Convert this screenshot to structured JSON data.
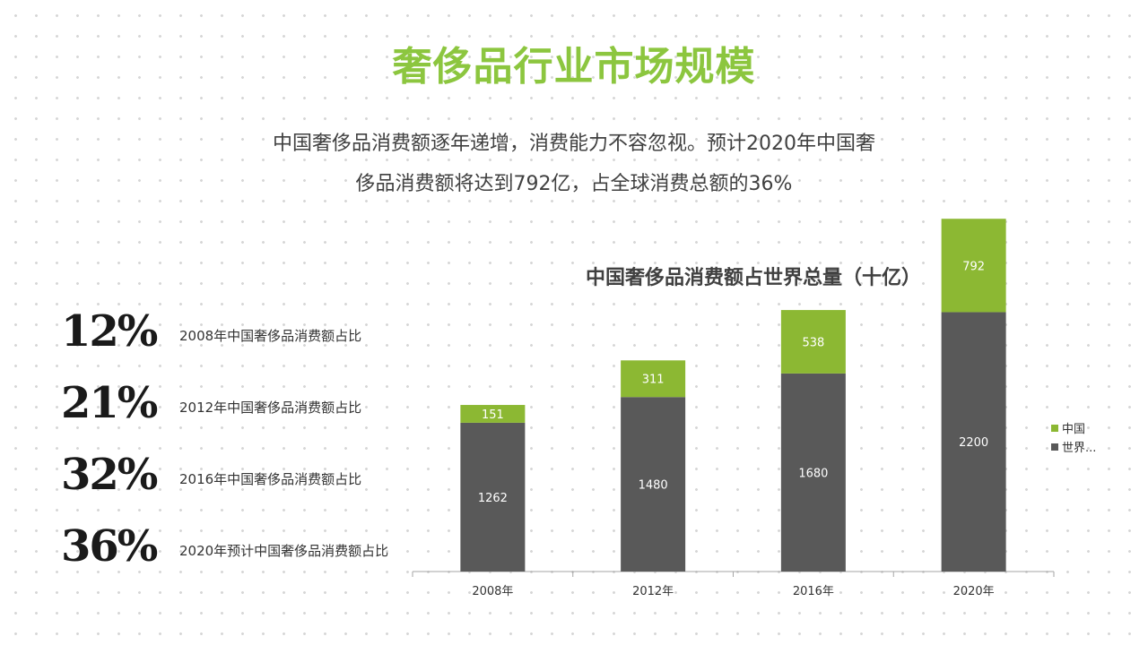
{
  "header": {
    "title": "奢侈品行业市场规模",
    "description_line1": "中国奢侈品消费额逐年递增，消费能力不容忽视。预计2020年中国奢",
    "description_line2": "侈品消费额将达到792亿，占全球消费总额的36%"
  },
  "stats": [
    {
      "value": "12%",
      "label": "2008年中国奢侈品消费额占比"
    },
    {
      "value": "21%",
      "label": "2012年中国奢侈品消费额占比"
    },
    {
      "value": "32%",
      "label": "2016年中国奢侈品消费额占比"
    },
    {
      "value": "36%",
      "label": "2020年预计中国奢侈品消费额占比"
    }
  ],
  "chart_data": {
    "type": "bar",
    "stacked": true,
    "title": "中国奢侈品消费额占世界总量（十亿）",
    "categories": [
      "2008年",
      "2012年",
      "2016年",
      "2020年"
    ],
    "series": [
      {
        "name": "世界...",
        "values": [
          1262,
          1480,
          1680,
          2200
        ],
        "color": "#595959"
      },
      {
        "name": "中国",
        "values": [
          151,
          311,
          538,
          792
        ],
        "color": "#8cb833"
      }
    ],
    "ylim": [
      0,
      3100
    ],
    "grid": false,
    "legend": "right"
  },
  "colors": {
    "accent": "#8cc63f",
    "china": "#8cb833",
    "world": "#595959"
  }
}
